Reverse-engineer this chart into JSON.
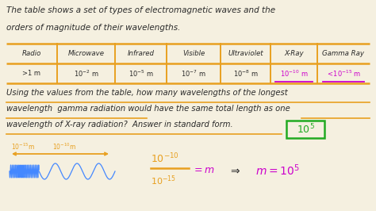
{
  "bg_color": "#f5f0e0",
  "text_color": "#2a2a2a",
  "orange_color": "#e8a020",
  "green_color": "#22aa22",
  "magenta_color": "#cc00cc",
  "blue_color": "#4488ff",
  "dark_blue": "#2255cc",
  "fig_w": 4.74,
  "fig_h": 2.66,
  "dpi": 100,
  "line1": "The table shows a set of types of electromagnetic waves and the",
  "line2": "orders of magnitude of their wavelengths.",
  "table_headers": [
    "Radio",
    "Microwave",
    "Infrared",
    "Visible",
    "Ultraviolet",
    "X-Ray",
    "Gamma Ray"
  ],
  "q_line1": "Using the values from the table, how many wavelengths of the longest",
  "q_line2": "wavelength  gamma radiation would have the same total length as one",
  "q_line3": "wavelength of X-ray radiation?  Answer in standard form."
}
